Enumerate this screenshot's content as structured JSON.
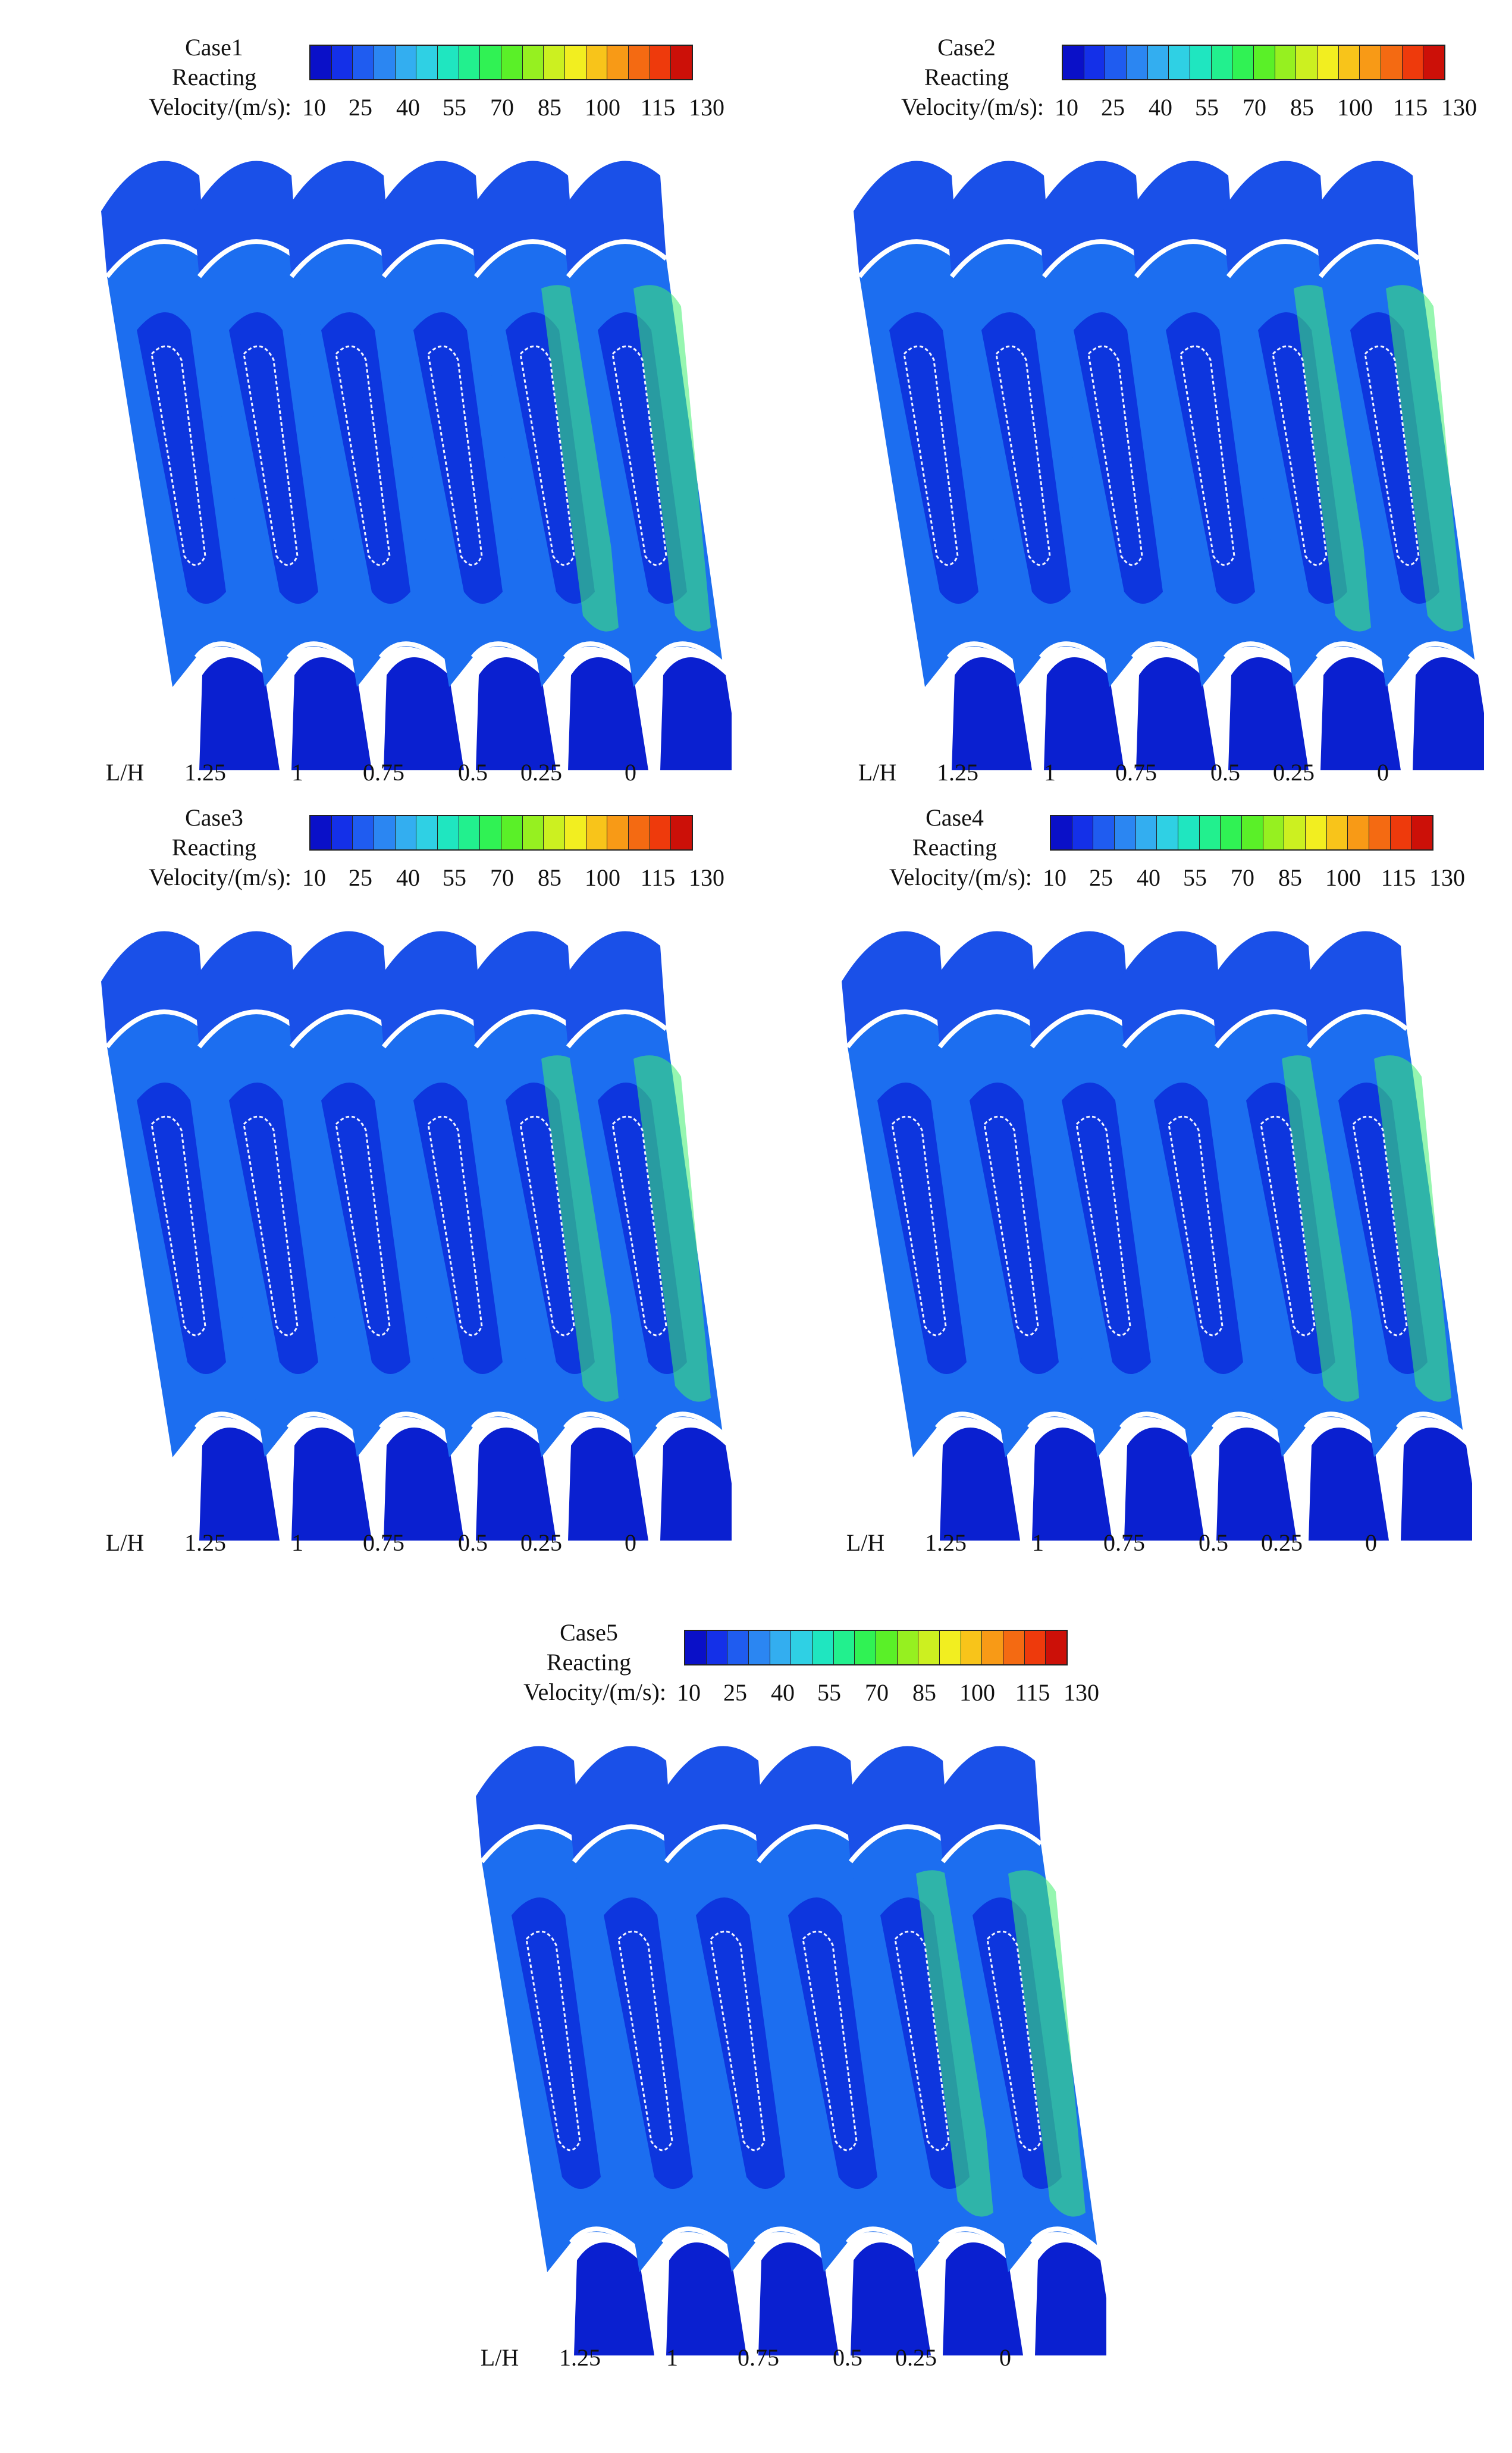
{
  "colorbar_ticks": [
    "10",
    "25",
    "40",
    "55",
    "70",
    "85",
    "100",
    "115",
    "130"
  ],
  "colors": {
    "scale": [
      "#0a10c8",
      "#1430e8",
      "#1f5cf0",
      "#2b86f2",
      "#33aef0",
      "#2fd0e4",
      "#1fe6c0",
      "#22f08e",
      "#30f254",
      "#5af028",
      "#96f020",
      "#ccf020",
      "#f2ee20",
      "#f8c41a",
      "#f89a16",
      "#f46a12",
      "#ee3a0c",
      "#cc1008"
    ],
    "region_fill": "#1c6ef0",
    "core_fill": "#0c30dc",
    "outer_fill": "#1a50e8",
    "lower_fill": "#0a20d0",
    "hot_fill": "#40ee70",
    "contour": "#f4f4ff",
    "edge": "#ffffff"
  },
  "lh_axis_label": "L/H",
  "lh_values": [
    "1.25",
    "1",
    "0.75",
    "0.5",
    "0.25",
    "0"
  ],
  "panels": [
    {
      "case": "Case1",
      "reacting": "Reacting",
      "velocity_label": "Velocity/(m/s):"
    },
    {
      "case": "Case2",
      "reacting": "Reacting",
      "velocity_label": "Velocity/(m/s):"
    },
    {
      "case": "Case3",
      "reacting": "Reacting",
      "velocity_label": "Velocity/(m/s):"
    },
    {
      "case": "Case4",
      "reacting": "Reacting",
      "velocity_label": "Velocity/(m/s):"
    },
    {
      "case": "Case5",
      "reacting": "Reacting",
      "velocity_label": "Velocity/(m/s):"
    }
  ]
}
